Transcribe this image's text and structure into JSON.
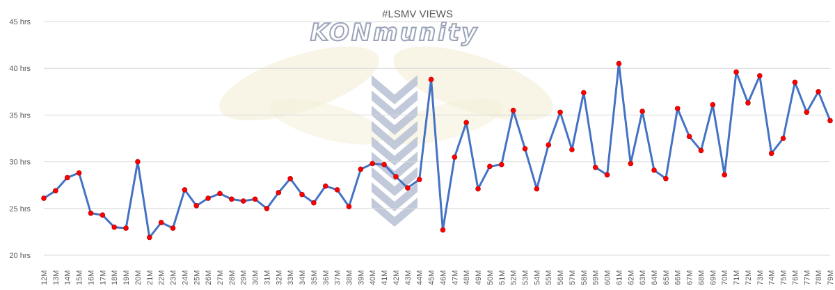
{
  "chart_data": {
    "type": "line",
    "title": "#LSMV VIEWS",
    "watermark_text": "KONmunity",
    "xlabel": "",
    "ylabel": "",
    "ylim": [
      20,
      45
    ],
    "yticks": [
      "20 hrs",
      "25 hrs",
      "30 hrs",
      "35 hrs",
      "40 hrs",
      "45 hrs"
    ],
    "grid": true,
    "legend": "none",
    "categories": [
      "12M",
      "13M",
      "14M",
      "15M",
      "16M",
      "17M",
      "18M",
      "19M",
      "20M",
      "21M",
      "22M",
      "23M",
      "24M",
      "25M",
      "26M",
      "27M",
      "28M",
      "29M",
      "30M",
      "31M",
      "32M",
      "33M",
      "34M",
      "35M",
      "36M",
      "37M",
      "38M",
      "39M",
      "40M",
      "41M",
      "42M",
      "43M",
      "44M",
      "45M",
      "46M",
      "47M",
      "48M",
      "49M",
      "50M",
      "51M",
      "52M",
      "53M",
      "54M",
      "55M",
      "56M",
      "57M",
      "58M",
      "59M",
      "60M",
      "61M",
      "62M",
      "63M",
      "64M",
      "65M",
      "66M",
      "67M",
      "68M",
      "69M",
      "70M",
      "71M",
      "72M",
      "73M",
      "74M",
      "75M",
      "76M",
      "77M",
      "78M",
      "79M"
    ],
    "series": [
      {
        "name": "",
        "color": "#4472c4",
        "marker_color": "#ff0000",
        "values": [
          26.1,
          26.9,
          28.3,
          28.8,
          24.5,
          24.3,
          23.0,
          22.9,
          30.0,
          21.9,
          23.5,
          22.9,
          27.0,
          25.3,
          26.1,
          26.6,
          26.0,
          25.8,
          26.0,
          25.0,
          26.7,
          28.2,
          26.5,
          25.6,
          27.4,
          27.0,
          25.2,
          29.2,
          29.8,
          29.7,
          28.4,
          27.2,
          28.1,
          38.8,
          22.7,
          30.5,
          34.2,
          27.1,
          29.5,
          29.7,
          35.5,
          31.4,
          27.1,
          31.8,
          35.3,
          31.3,
          37.4,
          29.4,
          28.6,
          40.5,
          29.8,
          35.4,
          29.1,
          28.2,
          35.7,
          32.7,
          31.2,
          36.1,
          28.6,
          39.6,
          36.3,
          39.2,
          30.9,
          32.5,
          38.5,
          35.3,
          37.5,
          34.4
        ]
      }
    ]
  }
}
